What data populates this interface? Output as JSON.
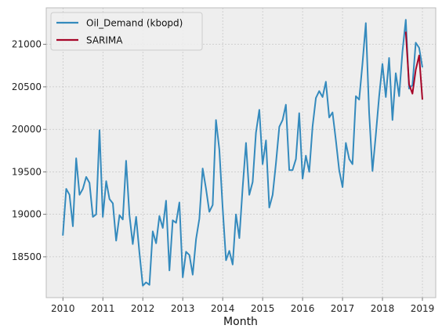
{
  "chart_data": {
    "type": "line",
    "xlabel": "Month",
    "ylabel": "",
    "xlim": [
      "2009-08-01",
      "2019-05-01"
    ],
    "ylim": [
      18020,
      21430
    ],
    "x_ticks": [
      {
        "date": "2010-01-01",
        "label": "2010"
      },
      {
        "date": "2011-01-01",
        "label": "2011"
      },
      {
        "date": "2012-01-01",
        "label": "2012"
      },
      {
        "date": "2013-01-01",
        "label": "2013"
      },
      {
        "date": "2014-01-01",
        "label": "2014"
      },
      {
        "date": "2015-01-01",
        "label": "2015"
      },
      {
        "date": "2016-01-01",
        "label": "2016"
      },
      {
        "date": "2017-01-01",
        "label": "2017"
      },
      {
        "date": "2018-01-01",
        "label": "2018"
      },
      {
        "date": "2019-01-01",
        "label": "2019"
      }
    ],
    "y_ticks": [
      {
        "value": 18500,
        "label": "18500"
      },
      {
        "value": 19000,
        "label": "19000"
      },
      {
        "value": 19500,
        "label": "19500"
      },
      {
        "value": 20000,
        "label": "20000"
      },
      {
        "value": 20500,
        "label": "20500"
      },
      {
        "value": 21000,
        "label": "21000"
      }
    ],
    "grid": true,
    "legend_position": "top-left",
    "series": [
      {
        "name": "Oil_Demand (kbopd)",
        "color": "#348ABD",
        "x": [
          "2010-01",
          "2010-02",
          "2010-03",
          "2010-04",
          "2010-05",
          "2010-06",
          "2010-07",
          "2010-08",
          "2010-09",
          "2010-10",
          "2010-11",
          "2010-12",
          "2011-01",
          "2011-02",
          "2011-03",
          "2011-04",
          "2011-05",
          "2011-06",
          "2011-07",
          "2011-08",
          "2011-09",
          "2011-10",
          "2011-11",
          "2011-12",
          "2012-01",
          "2012-02",
          "2012-03",
          "2012-04",
          "2012-05",
          "2012-06",
          "2012-07",
          "2012-08",
          "2012-09",
          "2012-10",
          "2012-11",
          "2012-12",
          "2013-01",
          "2013-02",
          "2013-03",
          "2013-04",
          "2013-05",
          "2013-06",
          "2013-07",
          "2013-08",
          "2013-09",
          "2013-10",
          "2013-11",
          "2013-12",
          "2014-01",
          "2014-02",
          "2014-03",
          "2014-04",
          "2014-05",
          "2014-06",
          "2014-07",
          "2014-08",
          "2014-09",
          "2014-10",
          "2014-11",
          "2014-12",
          "2015-01",
          "2015-02",
          "2015-03",
          "2015-04",
          "2015-05",
          "2015-06",
          "2015-07",
          "2015-08",
          "2015-09",
          "2015-10",
          "2015-11",
          "2015-12",
          "2016-01",
          "2016-02",
          "2016-03",
          "2016-04",
          "2016-05",
          "2016-06",
          "2016-07",
          "2016-08",
          "2016-09",
          "2016-10",
          "2016-11",
          "2016-12",
          "2017-01",
          "2017-02",
          "2017-03",
          "2017-04",
          "2017-05",
          "2017-06",
          "2017-07",
          "2017-08",
          "2017-09",
          "2017-10",
          "2017-11",
          "2017-12",
          "2018-01",
          "2018-02",
          "2018-03",
          "2018-04",
          "2018-05",
          "2018-06",
          "2018-07",
          "2018-08",
          "2018-09",
          "2018-10",
          "2018-11",
          "2018-12",
          "2019-01"
        ],
        "values": [
          18750,
          19300,
          19230,
          18860,
          19660,
          19230,
          19300,
          19440,
          19370,
          18970,
          19000,
          19990,
          18970,
          19390,
          19180,
          19130,
          18690,
          18990,
          18940,
          19630,
          18990,
          18650,
          18970,
          18550,
          18160,
          18200,
          18170,
          18800,
          18660,
          18980,
          18840,
          19160,
          18340,
          18930,
          18900,
          19140,
          18260,
          18560,
          18520,
          18290,
          18710,
          18950,
          19540,
          19300,
          19030,
          19110,
          20110,
          19760,
          19080,
          18460,
          18570,
          18410,
          19000,
          18720,
          19310,
          19840,
          19230,
          19380,
          19960,
          20230,
          19590,
          19870,
          19080,
          19230,
          19600,
          20030,
          20110,
          20290,
          19520,
          19520,
          19650,
          20190,
          19420,
          19690,
          19500,
          20030,
          20370,
          20450,
          20380,
          20560,
          20140,
          20200,
          19870,
          19520,
          19320,
          19840,
          19650,
          19590,
          20390,
          20350,
          20770,
          21250,
          20200,
          19510,
          19930,
          20390,
          20770,
          20380,
          20840,
          20110,
          20660,
          20390,
          20910,
          21290,
          20480,
          20520,
          21020,
          20960,
          20730
        ]
      },
      {
        "name": "SARIMA",
        "color": "#A60628",
        "x": [
          "2018-08",
          "2018-09",
          "2018-10",
          "2018-11",
          "2018-12",
          "2019-01"
        ],
        "values": [
          21150,
          20530,
          20420,
          20700,
          20870,
          20350
        ]
      }
    ]
  }
}
